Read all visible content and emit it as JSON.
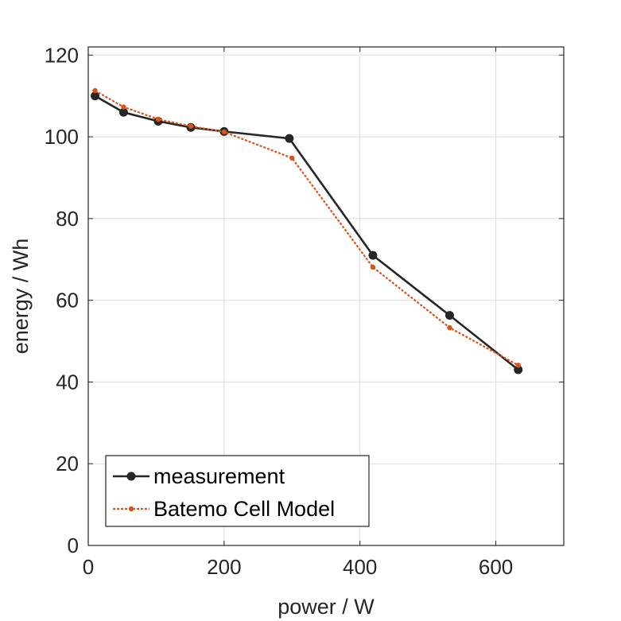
{
  "chart_data": {
    "type": "line",
    "xlabel": "power / W",
    "ylabel": "energy / Wh",
    "xlim": [
      0,
      700
    ],
    "ylim": [
      0,
      122
    ],
    "xticks": [
      0,
      200,
      400,
      600
    ],
    "yticks": [
      0,
      20,
      40,
      60,
      80,
      100,
      120
    ],
    "grid": true,
    "legend_position": "bottom-left",
    "series": [
      {
        "name": "measurement",
        "color": "#262626",
        "style": "solid",
        "marker": "circle",
        "x": [
          10,
          52,
          103,
          151,
          200,
          296,
          419,
          532,
          633
        ],
        "y": [
          110.0,
          106.0,
          103.8,
          102.3,
          101.3,
          99.6,
          71.0,
          56.3,
          43.0
        ]
      },
      {
        "name": "Batemo Cell Model",
        "color": "#D95319",
        "style": "dotted",
        "marker": "dot",
        "x": [
          10,
          52,
          103,
          151,
          200,
          300,
          419,
          532,
          633
        ],
        "y": [
          111.3,
          107.3,
          104.3,
          102.6,
          101.2,
          94.8,
          68.1,
          53.3,
          44.1
        ]
      }
    ]
  }
}
